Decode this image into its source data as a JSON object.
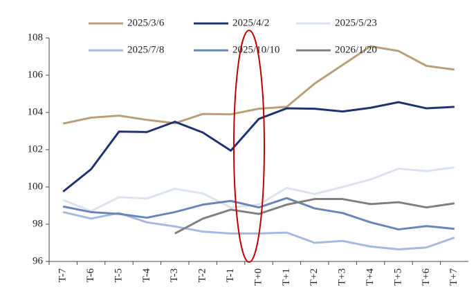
{
  "chart_data": {
    "type": "line",
    "categories": [
      "T-7",
      "T-6",
      "T-5",
      "T-4",
      "T-3",
      "T-2",
      "T-1",
      "T+0",
      "T+1",
      "T+2",
      "T+3",
      "T+4",
      "T+5",
      "T+6",
      "T+7"
    ],
    "series": [
      {
        "name": "2025/3/6",
        "color": "#b9a07a",
        "values": [
          103.4,
          103.72,
          103.83,
          103.6,
          103.42,
          103.92,
          103.9,
          104.2,
          104.3,
          105.55,
          106.55,
          107.55,
          107.3,
          106.5,
          106.3
        ]
      },
      {
        "name": "2025/4/2",
        "color": "#1f3370",
        "values": [
          99.75,
          100.95,
          102.97,
          102.95,
          103.5,
          102.92,
          101.95,
          103.65,
          104.22,
          104.2,
          104.05,
          104.25,
          104.55,
          104.22,
          104.3
        ]
      },
      {
        "name": "2025/5/23",
        "color": "#dde3ee",
        "values": [
          99.3,
          98.7,
          99.45,
          99.38,
          99.9,
          99.65,
          98.9,
          99.05,
          99.95,
          99.62,
          100.0,
          100.4,
          100.98,
          100.85,
          101.05
        ]
      },
      {
        "name": "2025/7/8",
        "color": "#a6b9e0",
        "values": [
          98.65,
          98.3,
          98.6,
          98.1,
          97.88,
          97.6,
          97.5,
          97.5,
          97.55,
          97.0,
          97.1,
          96.8,
          96.65,
          96.75,
          97.28
        ]
      },
      {
        "name": "2025/10/10",
        "color": "#6a85b8",
        "values": [
          98.95,
          98.65,
          98.55,
          98.35,
          98.65,
          99.05,
          99.25,
          98.9,
          99.4,
          98.85,
          98.6,
          98.1,
          97.72,
          97.9,
          97.75
        ]
      },
      {
        "name": "2026/1/20",
        "color": "#808080",
        "values": [
          null,
          null,
          null,
          null,
          97.5,
          98.3,
          98.78,
          98.55,
          99.05,
          99.35,
          99.35,
          99.08,
          99.18,
          98.9,
          99.12
        ]
      }
    ],
    "ylim": [
      96,
      108
    ],
    "yticks": [
      96,
      98,
      100,
      102,
      104,
      106,
      108
    ]
  }
}
